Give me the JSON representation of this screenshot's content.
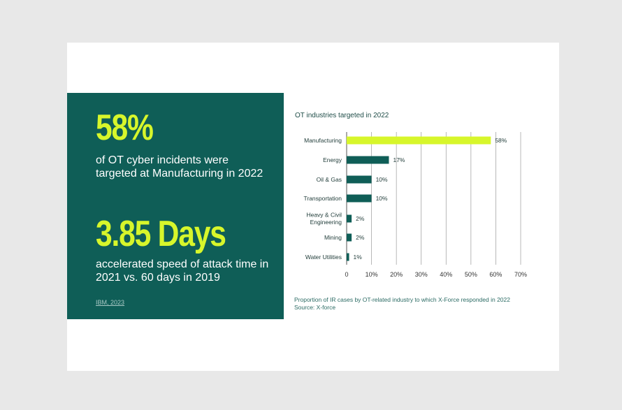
{
  "stats": {
    "stat1_value": "58%",
    "stat1_text": "of OT cyber incidents were targeted at Manufacturing in 2022",
    "stat2_value": "3.85 Days",
    "stat2_text": "accelerated speed of attack time in 2021 vs. 60 days in 2019",
    "source_link": "IBM, 2023"
  },
  "caption": {
    "line1": "Proportion of IR cases by OT-related industry to which X-Force responded in 2022",
    "line2": "Source: X-force"
  },
  "colors": {
    "panel_bg": "#0f5e57",
    "highlight": "#d7f62b",
    "bar": "#0f5e57",
    "bar_highlight": "#d7f62b"
  },
  "chart_data": {
    "type": "bar",
    "orientation": "horizontal",
    "title": "OT industries targeted in 2022",
    "categories": [
      [
        "Manufacturing"
      ],
      [
        "Energy"
      ],
      [
        "Oil & Gas"
      ],
      [
        "Transportation"
      ],
      [
        "Heavy & Civil",
        "Engineering"
      ],
      [
        "Mining"
      ],
      [
        "Water Utilities"
      ]
    ],
    "values": [
      58,
      17,
      10,
      10,
      2,
      2,
      1
    ],
    "value_labels": [
      "58%",
      "17%",
      "10%",
      "10%",
      "2%",
      "2%",
      "1%"
    ],
    "highlight_index": 0,
    "xlim": [
      0,
      70
    ],
    "xticks": [
      0,
      10,
      20,
      30,
      40,
      50,
      60,
      70
    ],
    "xtick_labels": [
      "0",
      "10%",
      "20%",
      "30%",
      "40%",
      "50%",
      "60%",
      "70%"
    ],
    "grid": true
  }
}
